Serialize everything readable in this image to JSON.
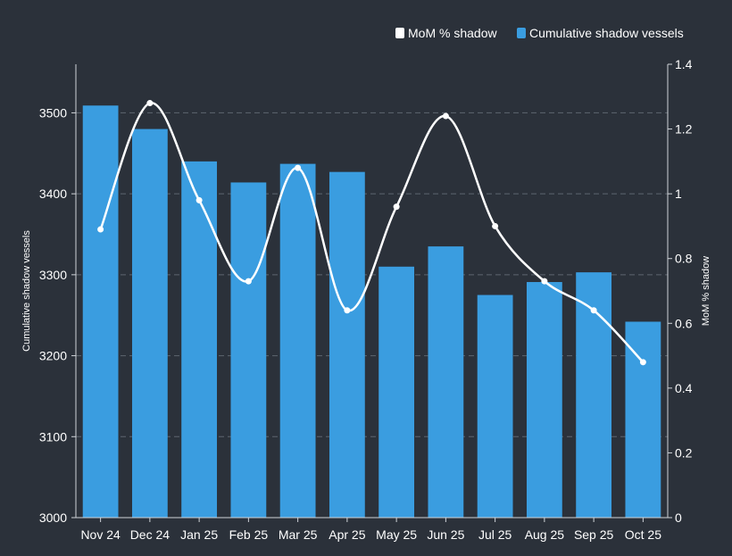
{
  "chart_data": {
    "type": "bar",
    "categories": [
      "Nov 24",
      "Dec 24",
      "Jan 25",
      "Feb 25",
      "Mar 25",
      "Apr 25",
      "May 25",
      "Jun 25",
      "Jul 25",
      "Aug 25",
      "Sep 25",
      "Oct 25"
    ],
    "series": [
      {
        "name": "Cumulative shadow vessels",
        "type": "bar",
        "axis": "left",
        "color": "#3a9de0",
        "values": [
          3509,
          3480,
          3440,
          3414,
          3437,
          3427,
          3310,
          3335,
          3275,
          3291,
          3303,
          3242
        ]
      },
      {
        "name": "MoM % shadow",
        "type": "line",
        "axis": "right",
        "color": "#ffffff",
        "values": [
          0.89,
          1.28,
          0.98,
          0.73,
          1.08,
          0.64,
          0.96,
          1.24,
          0.9,
          0.73,
          0.64,
          0.48
        ]
      }
    ],
    "ylabel": "Cumulative shadow vessels",
    "ylim": [
      3000,
      3560
    ],
    "yticks": [
      3000,
      3100,
      3200,
      3300,
      3400,
      3500
    ],
    "y2label": "MoM % shadow",
    "y2lim": [
      0,
      1.4
    ],
    "y2ticks": [
      0,
      0.2,
      0.4,
      0.6,
      0.8,
      1,
      1.2,
      1.4
    ],
    "y2tick_labels": [
      "0",
      "0.2",
      "0.4",
      "0.6",
      "0.8",
      "1",
      "1.2",
      "1.4"
    ],
    "grid": "horizontal dashed",
    "legend": "top-right",
    "background": "#2b313a",
    "grid_color": "#5e6670"
  }
}
